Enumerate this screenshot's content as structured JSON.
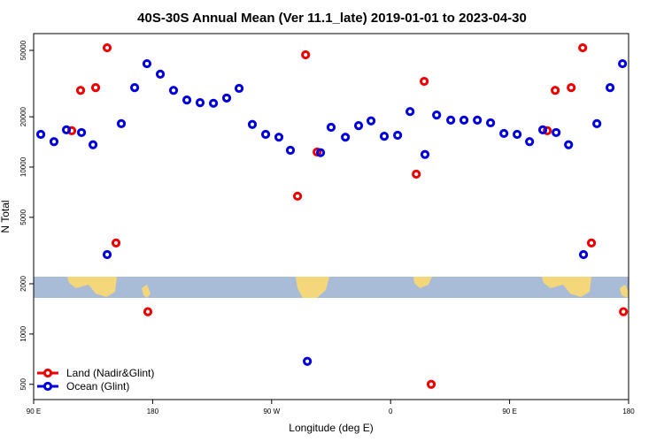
{
  "chart_data": {
    "type": "scatter",
    "title": "40S-30S Annual Mean (Ver 11.1_late)   2019-01-01 to 2023-04-30",
    "x_label": "Longitude (deg E)",
    "y_label": "N Total",
    "xlim": [
      90,
      540
    ],
    "ylim": [
      405,
      63000
    ],
    "log_y": true,
    "legend": "lower left",
    "xticks": [
      {
        "value": 90,
        "label": "90 E"
      },
      {
        "value": 180,
        "label": "180"
      },
      {
        "value": 270,
        "label": "90 W"
      },
      {
        "value": 360,
        "label": "0"
      },
      {
        "value": 450,
        "label": "90 E"
      },
      {
        "value": 540,
        "label": "180"
      }
    ],
    "yticks": [
      500,
      1000,
      2000,
      5000,
      10000,
      20000,
      50000
    ],
    "series": [
      {
        "name": "Land (Nadir&Glint)",
        "color": "#ee0000",
        "x": [
          118.8,
          125.5,
          136.9,
          145.6,
          152.3,
          176.4,
          289.6,
          295.7,
          304.4,
          379.4,
          385.4,
          390.7,
          478.5,
          484.5,
          496.6,
          505.3,
          511.9,
          536.1
        ],
        "values": [
          16500,
          28800,
          29900,
          51800,
          3510,
          1360,
          6690,
          47000,
          12300,
          9070,
          32600,
          500,
          16500,
          28800,
          29900,
          51800,
          3510,
          1360
        ]
      },
      {
        "name": "Ocean (Glint)",
        "color": "#0000dd",
        "x": [
          95.4,
          105.4,
          114.8,
          126.2,
          134.9,
          145.6,
          156.3,
          166.4,
          175.7,
          185.8,
          195.8,
          205.9,
          215.9,
          226.0,
          236.0,
          245.4,
          255.4,
          265.5,
          275.5,
          284.2,
          297.0,
          307.0,
          315.0,
          325.8,
          335.8,
          345.2,
          355.2,
          365.3,
          374.7,
          386.0,
          394.8,
          405.5,
          415.5,
          425.6,
          435.6,
          445.7,
          455.7,
          465.1,
          475.1,
          485.2,
          494.6,
          505.9,
          516.0,
          526.0,
          535.4
        ],
        "values": [
          15700,
          14200,
          16700,
          16100,
          13600,
          2990,
          18200,
          29900,
          41600,
          36000,
          28800,
          25200,
          24300,
          24100,
          25900,
          29600,
          18000,
          15700,
          15100,
          12600,
          686,
          12200,
          17300,
          15100,
          17700,
          18900,
          15300,
          15500,
          21500,
          11900,
          20500,
          19100,
          19100,
          19100,
          18400,
          15900,
          15700,
          14200,
          16700,
          16100,
          13600,
          2990,
          18200,
          29900,
          41600
        ]
      }
    ]
  }
}
